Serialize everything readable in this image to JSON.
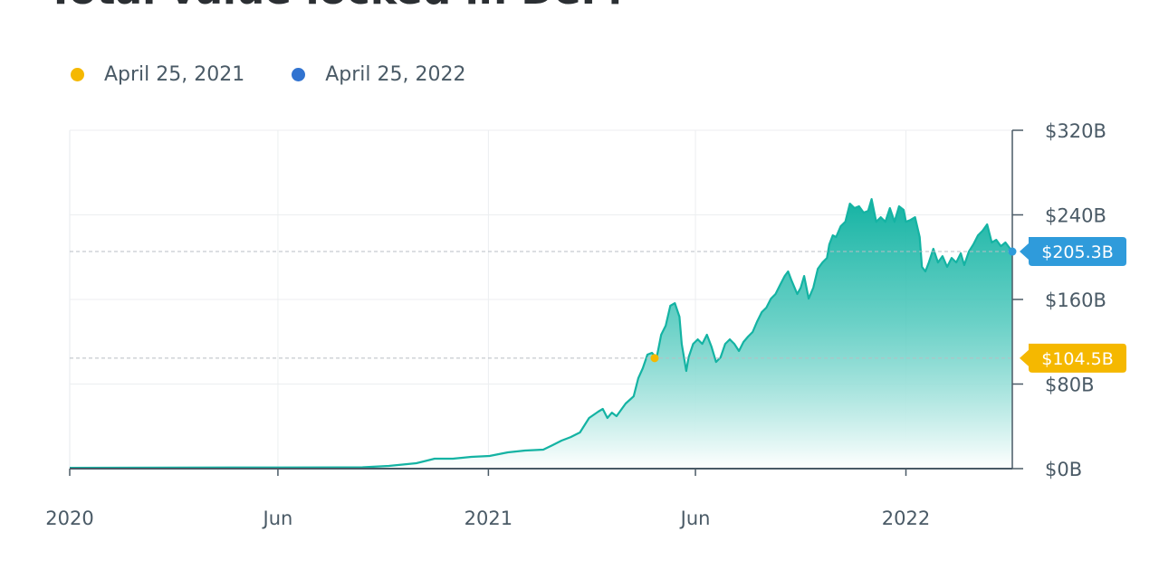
{
  "chart_data": {
    "type": "area",
    "title": "Total value locked in DeFi",
    "legend": [
      {
        "label": "April 25, 2021",
        "color": "#f5b800",
        "value": 104.5,
        "value_label": "$104.5B"
      },
      {
        "label": "April 25, 2022",
        "color": "#3173d0",
        "value": 205.3,
        "value_label": "$205.3B"
      }
    ],
    "legend_placement": "top-left",
    "y_axis": {
      "side": "right",
      "ylim": [
        0,
        320
      ],
      "ticks": [
        0,
        80,
        160,
        240,
        320
      ],
      "tick_labels": [
        "$0B",
        "$80B",
        "$160B",
        "$240B",
        "$320B"
      ],
      "unit": "billion USD"
    },
    "x_axis": {
      "xlim": [
        "2020-01-01",
        "2022-04-04"
      ],
      "ticks": [
        "2020-01-01",
        "2020-07-01",
        "2021-01-01",
        "2021-07-01",
        "2022-01-01"
      ],
      "tick_labels": [
        "2020",
        "Jun",
        "2021",
        "Jun",
        "2022"
      ]
    },
    "grid": true,
    "colors": {
      "line": "#14b3a3",
      "fill": "#1fb8a8",
      "text": "#4a5a66",
      "badge_yellow": "#f5b800",
      "badge_blue": "#2f9bdb"
    },
    "series": [
      [
        "2020-01-01",
        0.8
      ],
      [
        "2020-04-01",
        1.0
      ],
      [
        "2020-07-01",
        1.1
      ],
      [
        "2020-09-13",
        1.3
      ],
      [
        "2020-10-06",
        2.6
      ],
      [
        "2020-10-30",
        5.1
      ],
      [
        "2020-11-15",
        9.4
      ],
      [
        "2020-12-01",
        9.4
      ],
      [
        "2020-12-17",
        11.1
      ],
      [
        "2021-01-02",
        12
      ],
      [
        "2021-01-18",
        15.4
      ],
      [
        "2021-02-02",
        17.1
      ],
      [
        "2021-02-18",
        18
      ],
      [
        "2021-02-26",
        22.2
      ],
      [
        "2021-03-06",
        26.5
      ],
      [
        "2021-03-14",
        29.9
      ],
      [
        "2021-03-22",
        34.2
      ],
      [
        "2021-03-30",
        47.9
      ],
      [
        "2021-04-07",
        53.9
      ],
      [
        "2021-04-11",
        56.5
      ],
      [
        "2021-04-15",
        47.9
      ],
      [
        "2021-04-19",
        53
      ],
      [
        "2021-04-23",
        49.6
      ],
      [
        "2021-05-01",
        61.6
      ],
      [
        "2021-05-08",
        68.4
      ],
      [
        "2021-05-12",
        85.5
      ],
      [
        "2021-05-16",
        95
      ],
      [
        "2021-05-20",
        107.8
      ],
      [
        "2021-05-24",
        109.5
      ],
      [
        "2021-05-28",
        104.5
      ],
      [
        "2021-06-01",
        126.6
      ],
      [
        "2021-06-05",
        135.2
      ],
      [
        "2021-06-09",
        154
      ],
      [
        "2021-06-13",
        156.5
      ],
      [
        "2021-06-17",
        143.7
      ],
      [
        "2021-06-19",
        118
      ],
      [
        "2021-06-23",
        92.4
      ],
      [
        "2021-06-25",
        105.2
      ],
      [
        "2021-06-29",
        118
      ],
      [
        "2021-07-03",
        122.3
      ],
      [
        "2021-07-07",
        118
      ],
      [
        "2021-07-11",
        126.6
      ],
      [
        "2021-07-15",
        115.5
      ],
      [
        "2021-07-19",
        100.9
      ],
      [
        "2021-07-23",
        105.2
      ],
      [
        "2021-07-27",
        118
      ],
      [
        "2021-07-31",
        122.3
      ],
      [
        "2021-08-04",
        118
      ],
      [
        "2021-08-08",
        111.2
      ],
      [
        "2021-08-12",
        119.8
      ],
      [
        "2021-08-16",
        124.9
      ],
      [
        "2021-08-20",
        129.2
      ],
      [
        "2021-08-24",
        139.4
      ],
      [
        "2021-08-28",
        148
      ],
      [
        "2021-09-01",
        152.3
      ],
      [
        "2021-09-05",
        160.8
      ],
      [
        "2021-09-09",
        165.1
      ],
      [
        "2021-09-13",
        173.7
      ],
      [
        "2021-09-17",
        182.2
      ],
      [
        "2021-09-20",
        186.5
      ],
      [
        "2021-09-23",
        177.9
      ],
      [
        "2021-09-28",
        165.1
      ],
      [
        "2021-10-01",
        171.1
      ],
      [
        "2021-10-04",
        182.2
      ],
      [
        "2021-10-08",
        160.8
      ],
      [
        "2021-10-12",
        171.1
      ],
      [
        "2021-10-16",
        189
      ],
      [
        "2021-10-20",
        195
      ],
      [
        "2021-10-24",
        199.3
      ],
      [
        "2021-10-26",
        212.1
      ],
      [
        "2021-10-29",
        220.7
      ],
      [
        "2021-11-01",
        219
      ],
      [
        "2021-11-05",
        229.3
      ],
      [
        "2021-11-09",
        233.5
      ],
      [
        "2021-11-13",
        250.6
      ],
      [
        "2021-11-17",
        246.4
      ],
      [
        "2021-11-21",
        248.1
      ],
      [
        "2021-11-25",
        242.1
      ],
      [
        "2021-11-29",
        243.8
      ],
      [
        "2021-12-02",
        254.9
      ],
      [
        "2021-12-06",
        233.5
      ],
      [
        "2021-12-10",
        237.8
      ],
      [
        "2021-12-14",
        233.5
      ],
      [
        "2021-12-18",
        246.4
      ],
      [
        "2021-12-22",
        233.5
      ],
      [
        "2021-12-26",
        248.1
      ],
      [
        "2021-12-30",
        244.7
      ],
      [
        "2022-01-01",
        233.5
      ],
      [
        "2022-01-05",
        235.2
      ],
      [
        "2022-01-09",
        237.8
      ],
      [
        "2022-01-13",
        219
      ],
      [
        "2022-01-15",
        190.8
      ],
      [
        "2022-01-18",
        186.5
      ],
      [
        "2022-01-21",
        195
      ],
      [
        "2022-01-25",
        207.9
      ],
      [
        "2022-01-29",
        195
      ],
      [
        "2022-02-02",
        201
      ],
      [
        "2022-02-06",
        190.8
      ],
      [
        "2022-02-10",
        199.3
      ],
      [
        "2022-02-14",
        195
      ],
      [
        "2022-02-18",
        203.6
      ],
      [
        "2022-02-21",
        192.5
      ],
      [
        "2022-02-25",
        205.3
      ],
      [
        "2022-03-01",
        212.1
      ],
      [
        "2022-03-05",
        220.7
      ],
      [
        "2022-03-09",
        225
      ],
      [
        "2022-03-13",
        231
      ],
      [
        "2022-03-17",
        213.9
      ],
      [
        "2022-03-21",
        216.4
      ],
      [
        "2022-03-25",
        210.4
      ],
      [
        "2022-03-29",
        213.9
      ],
      [
        "2022-04-04",
        205.3
      ]
    ]
  }
}
